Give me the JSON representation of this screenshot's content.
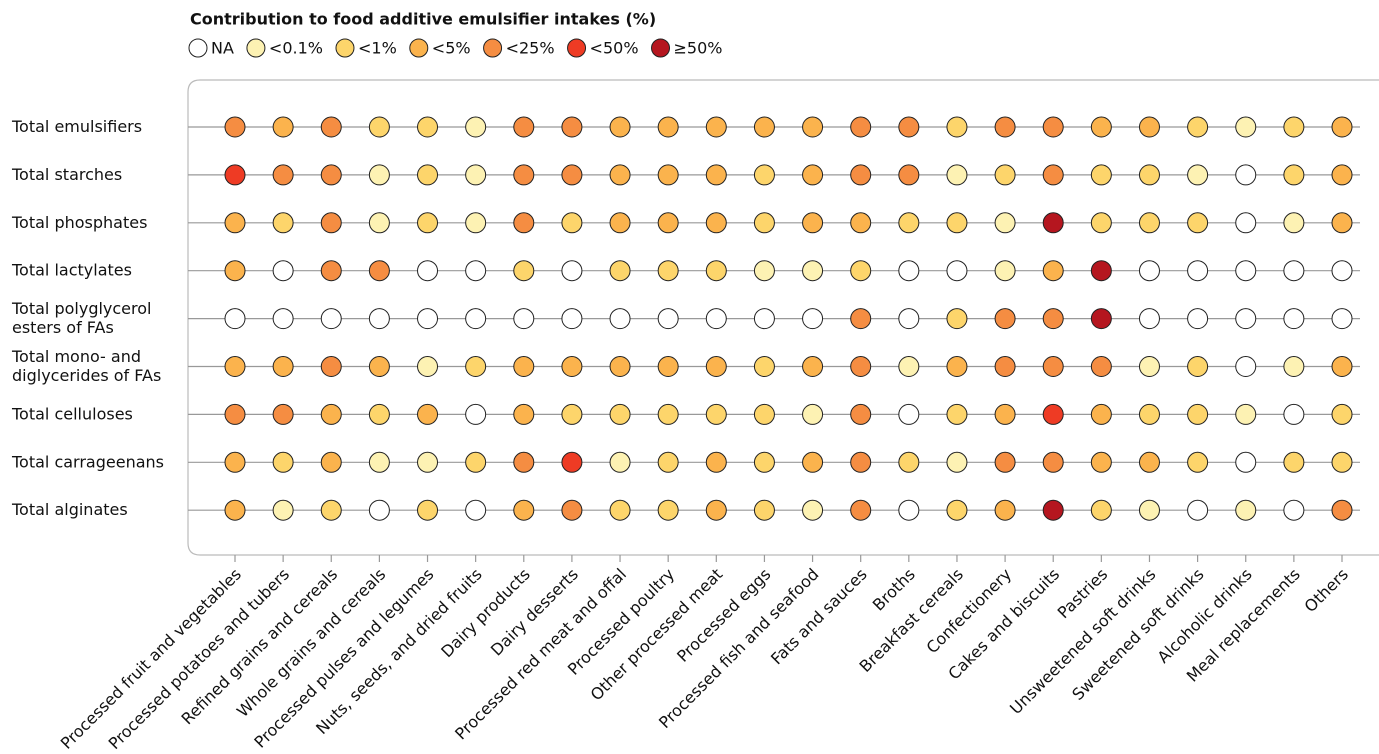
{
  "chart_data": {
    "type": "dotmatrix",
    "title": "Contribution to food additive emulsifier intakes (%)",
    "legend": [
      {
        "name": "NA",
        "color": "#ffffff"
      },
      {
        "name": "<0.1%",
        "color": "#fdf2b3"
      },
      {
        "name": "<1%",
        "color": "#fdd56b"
      },
      {
        "name": "<5%",
        "color": "#fbb34d"
      },
      {
        "name": "<25%",
        "color": "#f58d42"
      },
      {
        "name": "<50%",
        "color": "#ee3b24"
      },
      {
        "name": "≥50%",
        "color": "#b5161f"
      }
    ],
    "rows": [
      [
        "Total emulsifiers"
      ],
      [
        "Total starches"
      ],
      [
        "Total phosphates"
      ],
      [
        "Total lactylates"
      ],
      [
        "Total polyglycerol",
        "esters of FAs"
      ],
      [
        "Total  mono- and",
        "diglycerides of FAs"
      ],
      [
        "Total celluloses"
      ],
      [
        "Total carrageenans"
      ],
      [
        "Total alginates"
      ]
    ],
    "columns": [
      "Processed fruit and vegetables",
      "Processed potatoes and tubers",
      "Refined grains and cereals",
      "Whole grains and cereals",
      "Processed pulses and legumes",
      "Nuts, seeds, and dried fruits",
      "Dairy products",
      "Dairy desserts",
      "Processed red meat and offal",
      "Processed poultry",
      "Other processed meat",
      "Processed eggs",
      "Processed fish and seafood",
      "Fats and sauces",
      "Broths",
      "Breakfast cereals",
      "Confectionery",
      "Cakes and biscuits",
      "Pastries",
      "Unsweetened soft drinks",
      "Sweetened soft drinks",
      "Alcoholic drinks",
      "Meal replacements",
      "Others"
    ],
    "values": [
      [
        4,
        3,
        4,
        2,
        2,
        1,
        4,
        4,
        3,
        3,
        3,
        3,
        3,
        4,
        4,
        2,
        4,
        4,
        3,
        3,
        2,
        1,
        2,
        3
      ],
      [
        5,
        4,
        4,
        1,
        2,
        1,
        4,
        4,
        3,
        3,
        3,
        2,
        3,
        4,
        4,
        1,
        2,
        4,
        2,
        2,
        1,
        0,
        2,
        3
      ],
      [
        3,
        2,
        4,
        1,
        2,
        1,
        4,
        2,
        3,
        3,
        3,
        2,
        3,
        3,
        2,
        2,
        1,
        6,
        2,
        2,
        2,
        0,
        1,
        3
      ],
      [
        3,
        0,
        4,
        4,
        0,
        0,
        2,
        0,
        2,
        2,
        2,
        1,
        1,
        2,
        0,
        0,
        1,
        3,
        6,
        0,
        0,
        0,
        0,
        0
      ],
      [
        0,
        0,
        0,
        0,
        0,
        0,
        0,
        0,
        0,
        0,
        0,
        0,
        0,
        4,
        0,
        2,
        4,
        4,
        6,
        0,
        0,
        0,
        0,
        0
      ],
      [
        3,
        3,
        4,
        3,
        1,
        2,
        3,
        3,
        3,
        3,
        3,
        2,
        3,
        4,
        1,
        3,
        4,
        4,
        4,
        1,
        2,
        0,
        1,
        3
      ],
      [
        4,
        4,
        3,
        2,
        3,
        0,
        3,
        2,
        2,
        2,
        2,
        2,
        1,
        4,
        0,
        2,
        3,
        5,
        3,
        2,
        2,
        1,
        0,
        2
      ],
      [
        3,
        2,
        3,
        1,
        1,
        2,
        4,
        5,
        1,
        2,
        3,
        2,
        3,
        4,
        2,
        1,
        4,
        4,
        3,
        3,
        2,
        0,
        2,
        2
      ],
      [
        3,
        1,
        2,
        0,
        2,
        0,
        3,
        4,
        2,
        2,
        3,
        2,
        1,
        4,
        0,
        2,
        3,
        6,
        2,
        1,
        0,
        1,
        0,
        4
      ]
    ]
  }
}
